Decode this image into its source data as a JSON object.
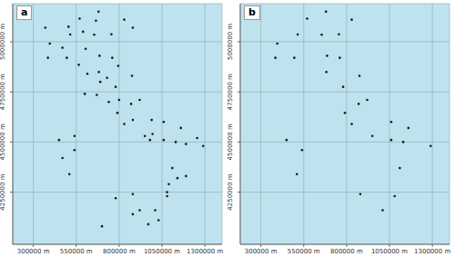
{
  "chart_data": [
    {
      "type": "scatter",
      "title": "a",
      "color": "#1a1a1a",
      "marker": "circle",
      "grid": true,
      "xlim": [
        180000,
        1400000
      ],
      "ylim": [
        3990000,
        5190000
      ],
      "xticks": [
        {
          "value": 300000,
          "label": "300000 m"
        },
        {
          "value": 550000,
          "label": "550000 m"
        },
        {
          "value": 800000,
          "label": "800000 m"
        },
        {
          "value": 1050000,
          "label": "1050000 m"
        },
        {
          "value": 1300000,
          "label": "1300000 m"
        }
      ],
      "yticks": [
        {
          "value": 4250000,
          "label": "4250000 m"
        },
        {
          "value": 4500000,
          "label": "4500000 m"
        },
        {
          "value": 4750000,
          "label": "4750000 m"
        },
        {
          "value": 5000000,
          "label": "5000000 m"
        }
      ],
      "x": [
        396000,
        515000,
        755000,
        880000,
        686000,
        495000,
        682000,
        790000,
        920000,
        950000,
        1160000,
        1290000,
        1190000,
        1060000,
        1110000,
        1080000,
        1140000,
        880000,
        780000,
        1010000,
        1030000,
        880000,
        510000,
        450000,
        540000,
        540000,
        470000,
        370000,
        680000,
        665000,
        830000,
        655000,
        605000,
        875000,
        780000,
        690000,
        615000,
        670000,
        870000,
        990000,
        1060000,
        980000,
        830000,
        590000,
        385000,
        760000,
        795000,
        700000,
        1080000,
        970000,
        920000,
        600000,
        1130000,
        1190000,
        570000,
        505000,
        470000,
        565000,
        730000,
        800000,
        740000,
        880000,
        995000,
        1255000,
        1090000
      ],
      "values": [
        4991000,
        5036000,
        5037000,
        5070000,
        4930000,
        4920000,
        4849000,
        4645000,
        4710000,
        4530000,
        4570000,
        4480000,
        4490000,
        4510000,
        4370000,
        4230000,
        4320000,
        4240000,
        4220000,
        4160000,
        4110000,
        4140000,
        4340000,
        4510000,
        4530000,
        4460000,
        4420000,
        5070000,
        5150000,
        5105000,
        5110000,
        5035000,
        4965000,
        4830000,
        4775000,
        4800000,
        4840000,
        4735000,
        4690000,
        4610000,
        4600000,
        4510000,
        4590000,
        5050000,
        4920000,
        4920000,
        4880000,
        4080000,
        4250000,
        4090000,
        4160000,
        4740000,
        4500000,
        4330000,
        5115000,
        5075000,
        4970000,
        4885000,
        4820000,
        4710000,
        4700000,
        4610000,
        4540000,
        4520000,
        4290000
      ]
    },
    {
      "type": "scatter",
      "title": "b",
      "color": "#1a1a1a",
      "marker": "circle",
      "grid": true,
      "xlim": [
        180000,
        1400000
      ],
      "ylim": [
        3990000,
        5190000
      ],
      "xticks": [
        {
          "value": 300000,
          "label": "300000 m"
        },
        {
          "value": 550000,
          "label": "550000 m"
        },
        {
          "value": 800000,
          "label": "800000 m"
        },
        {
          "value": 1050000,
          "label": "1050000 m"
        },
        {
          "value": 1300000,
          "label": "1300000 m"
        }
      ],
      "yticks": [
        {
          "value": 4250000,
          "label": "4250000 m"
        },
        {
          "value": 4500000,
          "label": "4500000 m"
        },
        {
          "value": 4750000,
          "label": "4750000 m"
        },
        {
          "value": 5000000,
          "label": "5000000 m"
        }
      ],
      "x": [
        396000,
        515000,
        755000,
        686000,
        495000,
        682000,
        790000,
        920000,
        950000,
        1160000,
        1290000,
        1060000,
        1110000,
        1080000,
        880000,
        1010000,
        510000,
        450000,
        540000,
        680000,
        830000,
        655000,
        875000,
        780000,
        870000,
        1060000,
        830000,
        385000,
        760000,
        1130000,
        570000
      ],
      "values": [
        4991000,
        5036000,
        5037000,
        4930000,
        4920000,
        4849000,
        4645000,
        4710000,
        4530000,
        4570000,
        4480000,
        4510000,
        4370000,
        4230000,
        4240000,
        4160000,
        4340000,
        4510000,
        4460000,
        5150000,
        5110000,
        5035000,
        4830000,
        4775000,
        4690000,
        4600000,
        4590000,
        4920000,
        4920000,
        4500000,
        5115000
      ]
    }
  ]
}
